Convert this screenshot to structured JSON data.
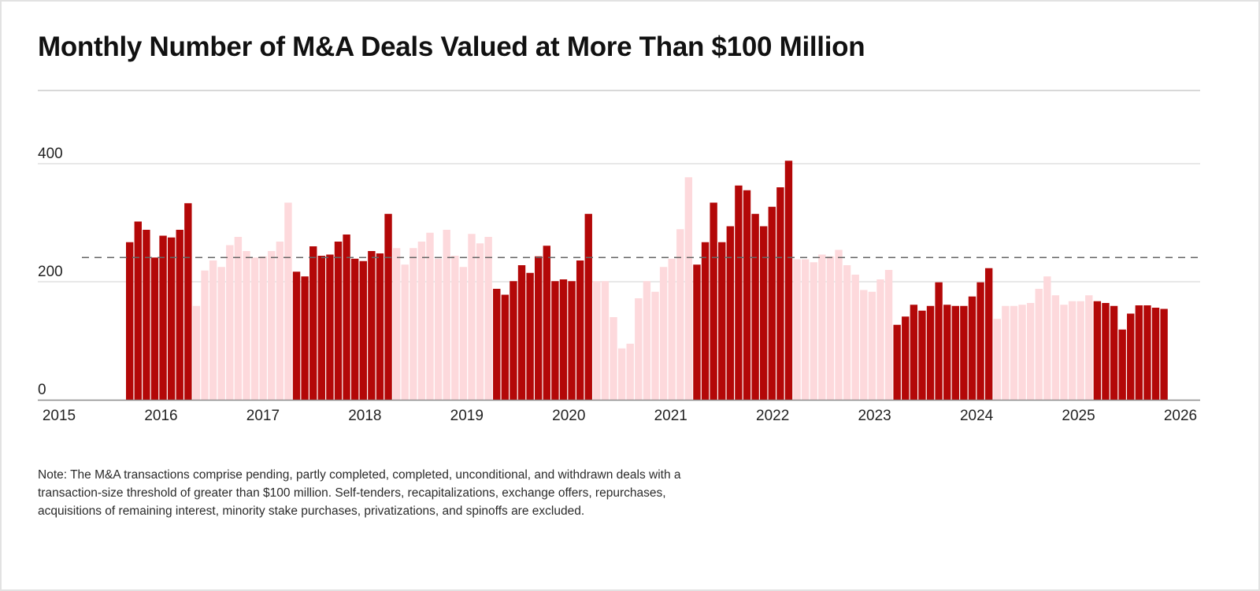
{
  "title": "Monthly Number of M&A Deals Valued at More Than $100 Million",
  "note": "Note: The M&A transactions comprise pending, partly completed, completed, unconditional, and withdrawn deals with a transaction-size threshold of greater than $100 million. Self-tenders, recapitalizations, exchange offers, repurchases, acquisitions of remaining interest, minority stake purchases, privatizations, and spinoffs are excluded.",
  "colors": {
    "dark_bar": "#b30808",
    "light_bar": "#fdd9dc",
    "gridline": "#d9d9d9",
    "average_line": "#666666",
    "axis": "#8a8a8a",
    "text": "#222222"
  },
  "chart_data": {
    "type": "bar",
    "title": "Monthly Number of M&A Deals Valued at More Than $100 Million",
    "xlabel": "",
    "ylabel": "",
    "ylim": [
      0,
      400
    ],
    "yticks": [
      0,
      200,
      400
    ],
    "ytick_labels": [
      "0",
      "200",
      "400"
    ],
    "xticks": [
      "2015",
      "2016",
      "2017",
      "2018",
      "2019",
      "2020",
      "2021",
      "2022",
      "2023",
      "2024",
      "2025",
      "2026"
    ],
    "x_range": [
      "2015",
      "2026"
    ],
    "grid": true,
    "average_line": 241,
    "average_line_style": "dashed",
    "color_blocks_note": "bars alternate dark red / light pink in 12-month blocks",
    "groups": [
      {
        "shade": "dark",
        "values": [
          267,
          302,
          288,
          241,
          278,
          275,
          288,
          333
        ]
      },
      {
        "shade": "light",
        "values": [
          159,
          219,
          236,
          225,
          262,
          276,
          252,
          241,
          243,
          252,
          268,
          334
        ]
      },
      {
        "shade": "dark",
        "values": [
          217,
          209,
          260,
          244,
          246,
          268,
          280,
          239,
          235,
          252,
          248,
          315
        ]
      },
      {
        "shade": "light",
        "values": [
          257,
          229,
          257,
          268,
          283,
          239,
          288,
          244,
          225,
          281,
          265,
          276
        ]
      },
      {
        "shade": "dark",
        "values": [
          188,
          178,
          201,
          228,
          215,
          243,
          261,
          201,
          204,
          201,
          236,
          315
        ]
      },
      {
        "shade": "light",
        "values": [
          201,
          201,
          140,
          87,
          95,
          172,
          201,
          183,
          225,
          239,
          289,
          377
        ]
      },
      {
        "shade": "dark",
        "values": [
          229,
          267,
          334,
          267,
          294,
          363,
          355,
          315,
          294,
          327,
          360,
          405
        ]
      },
      {
        "shade": "light",
        "values": [
          238,
          238,
          233,
          246,
          243,
          254,
          228,
          212,
          186,
          183,
          204,
          220
        ]
      },
      {
        "shade": "dark",
        "values": [
          127,
          141,
          161,
          151,
          159,
          199,
          161,
          159,
          159,
          175,
          199,
          223
        ]
      },
      {
        "shade": "light",
        "values": [
          137,
          159,
          159,
          161,
          164,
          188,
          209,
          177,
          161,
          167,
          167,
          177
        ]
      },
      {
        "shade": "dark",
        "values": [
          167,
          164,
          159,
          119,
          146,
          160,
          160,
          156,
          154
        ]
      }
    ]
  }
}
